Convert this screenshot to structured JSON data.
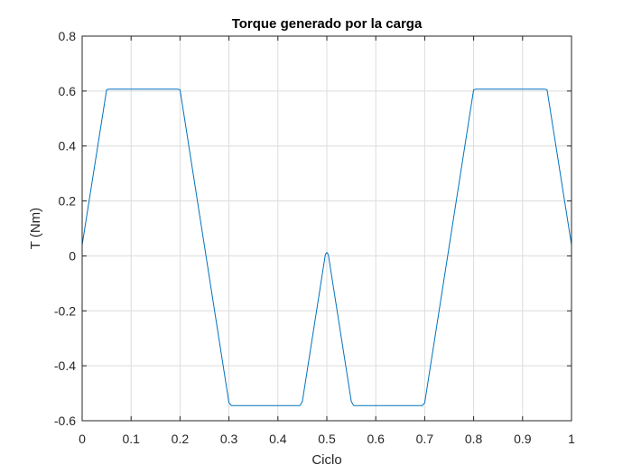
{
  "chart_data": {
    "type": "line",
    "title": "Torque generado por la carga",
    "xlabel": "Ciclo",
    "ylabel": "T (Nm)",
    "xlim": [
      0,
      1
    ],
    "ylim": [
      -0.6,
      0.8
    ],
    "xticks": [
      0,
      0.1,
      0.2,
      0.3,
      0.4,
      0.5,
      0.6,
      0.7,
      0.8,
      0.9,
      1
    ],
    "xtick_labels": [
      "0",
      "0.1",
      "0.2",
      "0.3",
      "0.4",
      "0.5",
      "0.6",
      "0.7",
      "0.8",
      "0.9",
      "1"
    ],
    "yticks": [
      -0.6,
      -0.4,
      -0.2,
      0,
      0.2,
      0.4,
      0.6,
      0.8
    ],
    "ytick_labels": [
      "-0.6",
      "-0.4",
      "-0.2",
      "0",
      "0.2",
      "0.4",
      "0.6",
      "0.8"
    ],
    "grid": true,
    "colors": {
      "line": "#0072BD",
      "grid": "#dcdcdc",
      "axes": "#262626"
    },
    "series": [
      {
        "x": [
          0,
          0.05,
          0.055,
          0.195,
          0.2,
          0.3,
          0.305,
          0.445,
          0.45,
          0.497,
          0.5,
          0.503,
          0.55,
          0.555,
          0.695,
          0.7,
          0.8,
          0.805,
          0.945,
          0.95,
          1.0
        ],
        "y": [
          0.04,
          0.605,
          0.607,
          0.607,
          0.605,
          -0.535,
          -0.545,
          -0.545,
          -0.53,
          0.005,
          0.013,
          0.005,
          -0.53,
          -0.545,
          -0.545,
          -0.535,
          0.605,
          0.607,
          0.607,
          0.605,
          0.04
        ]
      }
    ]
  }
}
